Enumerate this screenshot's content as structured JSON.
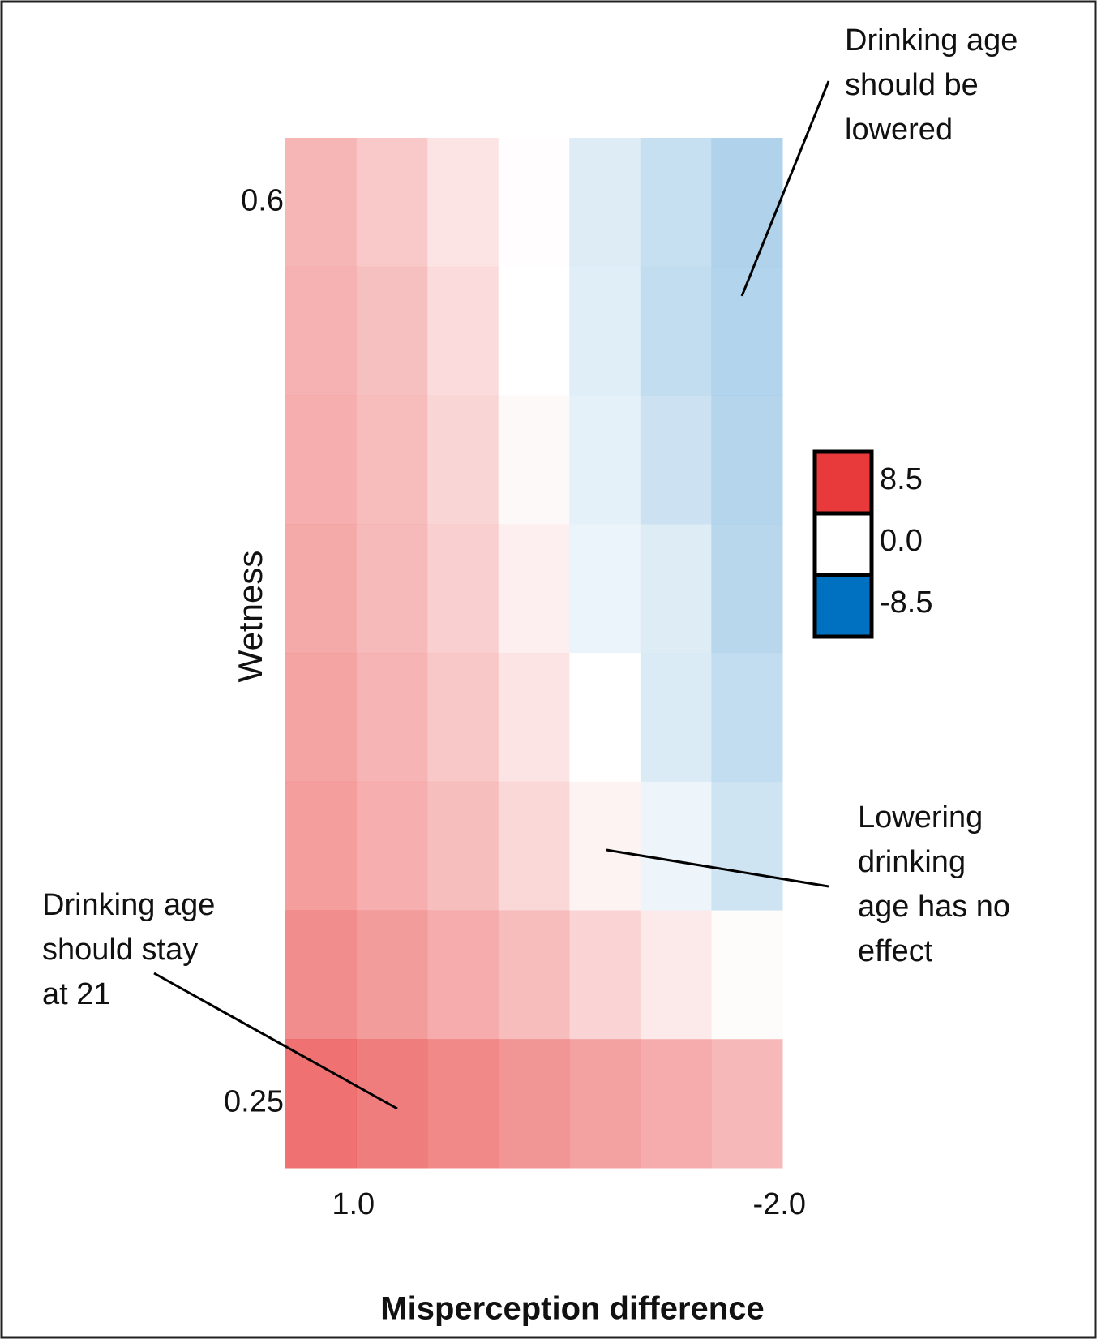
{
  "chart_data": {
    "type": "heatmap",
    "x_label": "Misperception difference",
    "y_label": "Wetness",
    "x": [
      1.0,
      0.5,
      0.0,
      -0.5,
      -1.0,
      -1.5,
      -2.0
    ],
    "y": [
      0.6,
      0.55,
      0.5,
      0.45,
      0.4,
      0.35,
      0.3,
      0.25
    ],
    "values": [
      [
        3.7,
        2.7,
        1.4,
        0.1,
        -1.3,
        -2.2,
        -3.1
      ],
      [
        3.9,
        3.2,
        1.8,
        0.0,
        -1.2,
        -2.4,
        -3.0
      ],
      [
        4.1,
        3.4,
        2.1,
        0.3,
        -1.0,
        -2.0,
        -2.9
      ],
      [
        4.3,
        3.5,
        2.4,
        0.8,
        -0.8,
        -1.3,
        -2.8
      ],
      [
        4.6,
        3.8,
        2.8,
        1.4,
        0.0,
        -1.4,
        -2.4
      ],
      [
        4.9,
        4.1,
        3.3,
        2.0,
        0.6,
        -0.7,
        -1.9
      ],
      [
        5.8,
        5.0,
        4.2,
        3.4,
        2.2,
        1.1,
        0.2
      ],
      [
        7.2,
        6.6,
        6.0,
        5.4,
        4.8,
        4.2,
        3.6
      ]
    ],
    "xlim": [
      1.25,
      -2.25
    ],
    "ylim": [
      0.225,
      0.625
    ],
    "xticks": [
      {
        "value": 1.0,
        "label": "1.0"
      },
      {
        "value": -2.0,
        "label": "-2.0"
      }
    ],
    "yticks": [
      0.6,
      0.25
    ],
    "clim": [
      -8.5,
      8.5
    ],
    "colormap": {
      "low": "#0070c0",
      "mid": "#ffffff",
      "high": "#e83a3a"
    },
    "colorbar": {
      "ticks": [
        8.5,
        {
          "value": 0.0,
          "label": "0.0"
        },
        -8.5
      ]
    },
    "annotations": [
      {
        "lines": [
          "Drinking age",
          "should be",
          "lowered"
        ]
      },
      {
        "lines": [
          "Lowering",
          "drinking",
          "age has no",
          "effect"
        ]
      },
      {
        "lines": [
          "Drinking age",
          "should stay",
          "at 21"
        ]
      }
    ]
  }
}
